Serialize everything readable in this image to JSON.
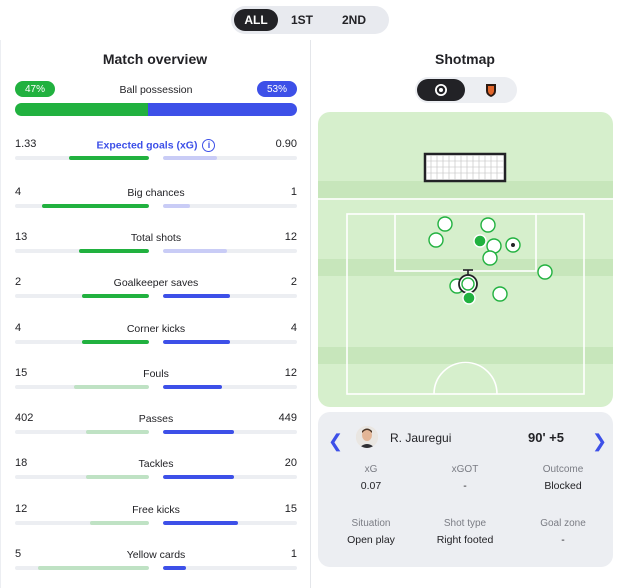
{
  "period_tabs": [
    "ALL",
    "1ST",
    "2ND"
  ],
  "overview": {
    "title": "Match overview",
    "possession": {
      "label": "Ball possession",
      "home": "47%",
      "away": "53%",
      "home_pct": 47,
      "away_pct": 53
    },
    "stats": [
      {
        "label": "Expected goals (xG)",
        "home": "1.33",
        "away": "0.90",
        "home_frac": 0.6,
        "away_frac": 0.4,
        "home_color": "#21b13f",
        "away_color": "#c9ccf6",
        "highlight": true
      },
      {
        "label": "Big chances",
        "home": "4",
        "away": "1",
        "home_frac": 0.8,
        "away_frac": 0.2,
        "home_color": "#21b13f",
        "away_color": "#c9ccf6"
      },
      {
        "label": "Total shots",
        "home": "13",
        "away": "12",
        "home_frac": 0.52,
        "away_frac": 0.48,
        "home_color": "#21b13f",
        "away_color": "#c9ccf6"
      },
      {
        "label": "Goalkeeper saves",
        "home": "2",
        "away": "2",
        "home_frac": 0.5,
        "away_frac": 0.5,
        "home_color": "#21b13f",
        "away_color": "#3d50e8"
      },
      {
        "label": "Corner kicks",
        "home": "4",
        "away": "4",
        "home_frac": 0.5,
        "away_frac": 0.5,
        "home_color": "#21b13f",
        "away_color": "#3d50e8"
      },
      {
        "label": "Fouls",
        "home": "15",
        "away": "12",
        "home_frac": 0.56,
        "away_frac": 0.44,
        "home_color": "#bfe2c4",
        "away_color": "#3d50e8"
      },
      {
        "label": "Passes",
        "home": "402",
        "away": "449",
        "home_frac": 0.47,
        "away_frac": 0.53,
        "home_color": "#bfe2c4",
        "away_color": "#3d50e8"
      },
      {
        "label": "Tackles",
        "home": "18",
        "away": "20",
        "home_frac": 0.47,
        "away_frac": 0.53,
        "home_color": "#bfe2c4",
        "away_color": "#3d50e8"
      },
      {
        "label": "Free kicks",
        "home": "12",
        "away": "15",
        "home_frac": 0.44,
        "away_frac": 0.56,
        "home_color": "#bfe2c4",
        "away_color": "#3d50e8"
      },
      {
        "label": "Yellow cards",
        "home": "5",
        "away": "1",
        "home_frac": 0.83,
        "away_frac": 0.17,
        "home_color": "#bfe2c4",
        "away_color": "#3d50e8"
      }
    ]
  },
  "shotmap": {
    "title": "Shotmap",
    "teams": [
      "home-team-crest",
      "away-team-crest"
    ],
    "selected_shot": {
      "player": "R. Jauregui",
      "time": "90' +5",
      "details": [
        {
          "key": "xG",
          "value": "0.07"
        },
        {
          "key": "xGOT",
          "value": "-"
        },
        {
          "key": "Outcome",
          "value": "Blocked"
        },
        {
          "key": "Situation",
          "value": "Open play"
        },
        {
          "key": "Shot type",
          "value": "Right footed"
        },
        {
          "key": "Goal zone",
          "value": "-"
        }
      ]
    }
  },
  "colors": {
    "home": "#21b13f",
    "away": "#3d50e8",
    "pitch": "#d6efcc",
    "pitch_dark": "#c7e6bb"
  }
}
